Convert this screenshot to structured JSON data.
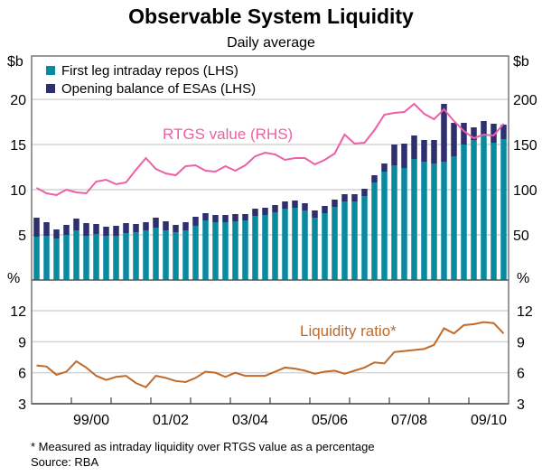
{
  "chart_data": [
    {
      "type": "bar",
      "title": "Observable System Liquidity",
      "subtitle": "Daily average",
      "ylabel_left": "$b",
      "ylabel_right": "$b",
      "ylim_left": [
        0,
        20
      ],
      "ylim_right": [
        0,
        200
      ],
      "yticks_left": [
        "5",
        "10",
        "15",
        "20"
      ],
      "yticks_right": [
        "50",
        "100",
        "150",
        "200"
      ],
      "grid": true,
      "legend_position": "top-left",
      "series": [
        {
          "name": "First leg intraday repos (LHS)",
          "kind": "stacked-bar",
          "color": "#0a8a9f",
          "values": [
            4.8,
            4.9,
            4.6,
            5.0,
            5.5,
            4.9,
            5.1,
            4.9,
            4.9,
            5.2,
            5.3,
            5.5,
            5.8,
            5.5,
            5.3,
            5.5,
            6.0,
            6.6,
            6.4,
            6.4,
            6.5,
            6.6,
            7.1,
            7.2,
            7.5,
            7.9,
            8.0,
            7.7,
            6.9,
            7.4,
            8.1,
            8.7,
            8.7,
            9.3,
            10.8,
            12.0,
            12.7,
            12.4,
            13.4,
            13.1,
            12.9,
            13.1,
            13.7,
            15.0,
            15.5,
            16.0,
            15.2,
            15.6
          ]
        },
        {
          "name": "Opening balance of ESAs (LHS)",
          "kind": "stacked-bar",
          "color": "#2e2f6e",
          "values": [
            2.1,
            1.5,
            1.0,
            1.1,
            1.3,
            1.4,
            1.1,
            1.0,
            1.1,
            1.1,
            0.9,
            0.9,
            1.1,
            1.0,
            0.8,
            0.9,
            1.0,
            0.8,
            0.8,
            0.8,
            0.8,
            0.7,
            0.8,
            0.8,
            0.8,
            0.8,
            0.8,
            0.8,
            0.8,
            0.8,
            0.8,
            0.8,
            0.8,
            0.8,
            0.8,
            0.9,
            2.3,
            2.7,
            2.6,
            2.4,
            2.6,
            6.4,
            3.7,
            2.4,
            1.4,
            1.6,
            2.1,
            1.6
          ]
        },
        {
          "name": "RTGS value (RHS)",
          "kind": "line",
          "axis": "right",
          "color": "#ee5fa7",
          "values": [
            102,
            96,
            94,
            100,
            97,
            96,
            109,
            111,
            106,
            108,
            122,
            135,
            123,
            118,
            116,
            126,
            127,
            121,
            120,
            126,
            121,
            127,
            137,
            141,
            139,
            133,
            135,
            135,
            128,
            133,
            140,
            161,
            151,
            152,
            166,
            183,
            185,
            186,
            195,
            184,
            178,
            189,
            176,
            165,
            157,
            161,
            160,
            173
          ]
        }
      ]
    },
    {
      "type": "line",
      "ylabel_left": "%",
      "ylabel_right": "%",
      "ylim": [
        3,
        12
      ],
      "yticks": [
        "3",
        "6",
        "9",
        "12"
      ],
      "xtick_labels": [
        "99/00",
        "01/02",
        "03/04",
        "05/06",
        "07/08",
        "09/10"
      ],
      "grid": true,
      "series": [
        {
          "name": "Liquidity ratio*",
          "color": "#c06a2b",
          "values": [
            6.7,
            6.6,
            5.8,
            6.1,
            7.1,
            6.5,
            5.7,
            5.3,
            5.6,
            5.7,
            5.0,
            4.6,
            5.7,
            5.5,
            5.2,
            5.1,
            5.5,
            6.1,
            6.0,
            5.6,
            6.0,
            5.7,
            5.7,
            5.7,
            6.1,
            6.5,
            6.4,
            6.2,
            5.9,
            6.1,
            6.2,
            5.9,
            6.2,
            6.5,
            7.0,
            6.9,
            8.0,
            8.1,
            8.2,
            8.3,
            8.7,
            10.3,
            9.8,
            10.6,
            10.7,
            10.9,
            10.8,
            9.8
          ]
        }
      ]
    }
  ],
  "footnote": "*   Measured as intraday liquidity over RTGS value as a percentage",
  "source": "Source: RBA"
}
